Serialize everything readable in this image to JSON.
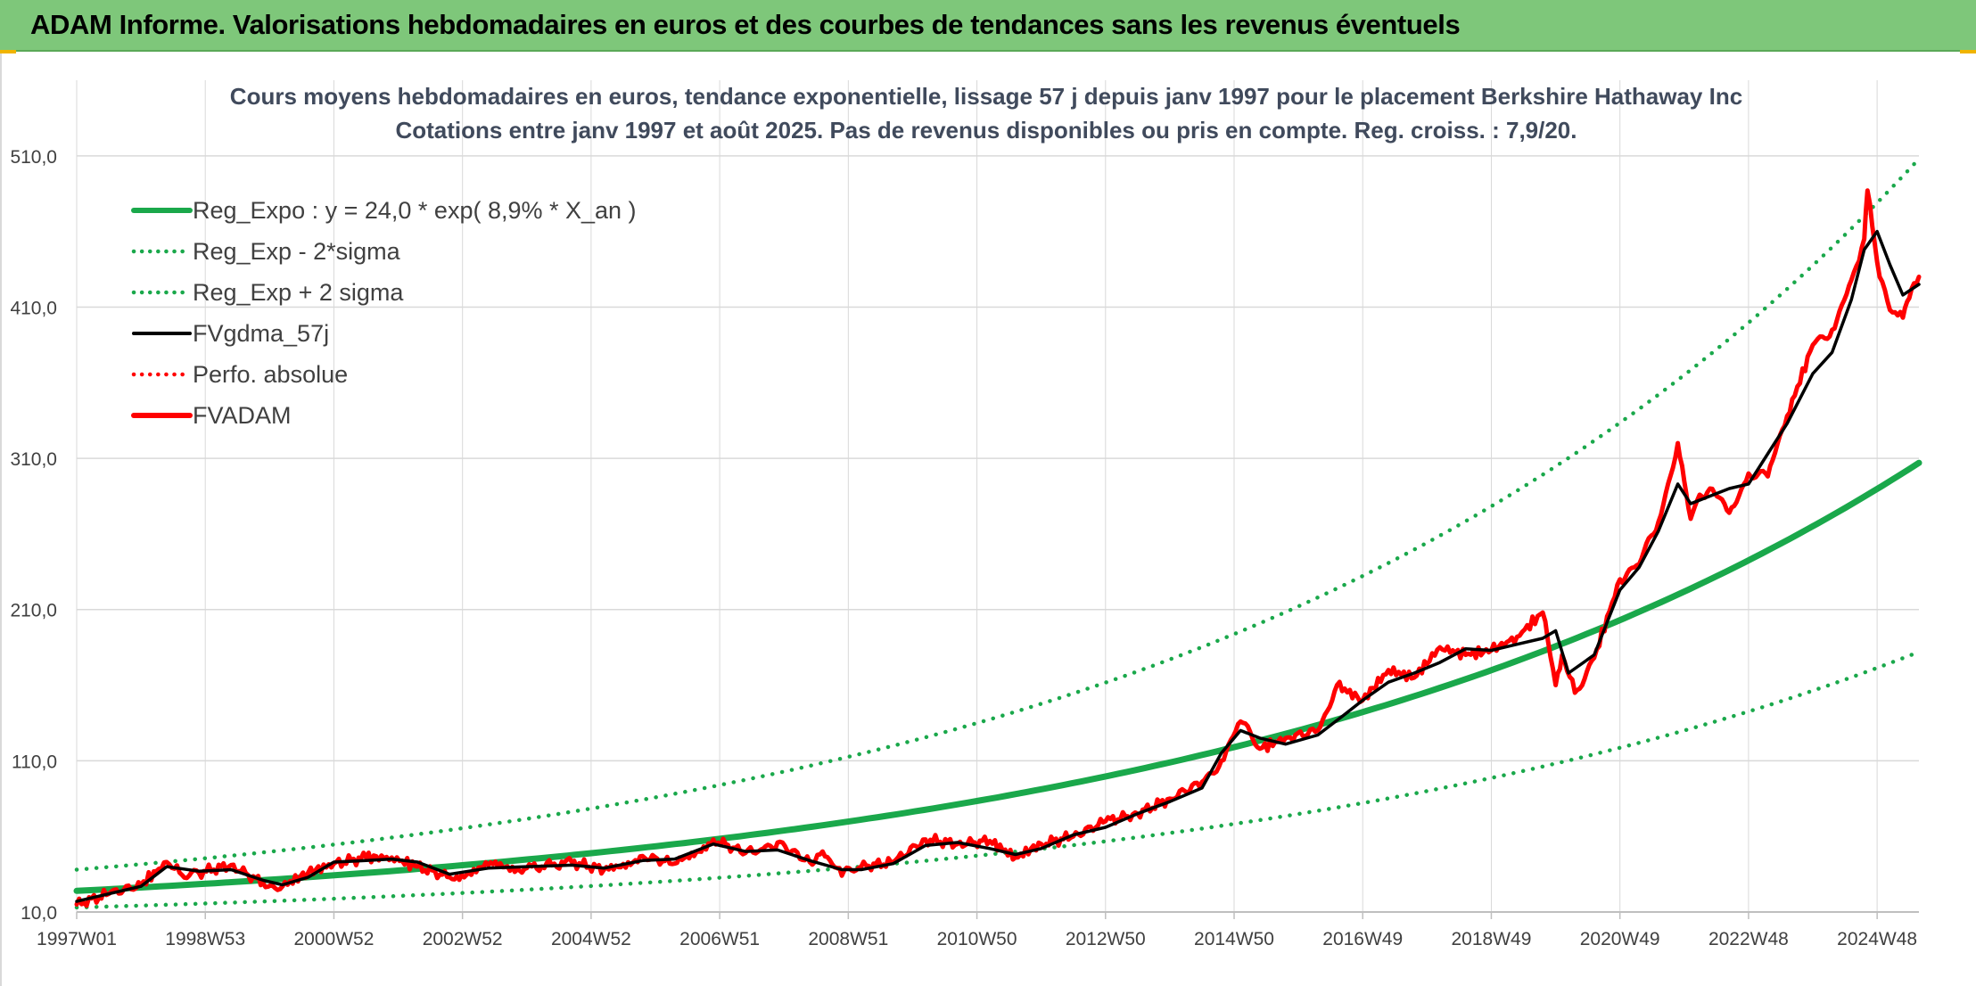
{
  "header": {
    "title": "ADAM Informe. Valorisations hebdomadaires en euros et des courbes de tendances sans les revenus éventuels"
  },
  "colors": {
    "banner": "#7ec77a",
    "trend": "#1aa84b",
    "price": "#ff0000",
    "smooth": "#000000",
    "grid": "#d9d9d9"
  },
  "chart_data": {
    "type": "line",
    "title": "Cours moyens hebdomadaires en euros, tendance exponentielle, lissage 57 j depuis janv 1997 pour le placement Berkshire Hathaway Inc",
    "subtitle": "Cotations entre janv 1997 et août 2025. Pas de revenus disponibles ou pris en compte. Reg. croiss. : 7,9/20.",
    "xlabel": "",
    "ylabel": "",
    "ylim": [
      10,
      560
    ],
    "xlim": [
      1997.0,
      2025.65
    ],
    "grid": true,
    "legend_position": "top-left",
    "y_ticks": [
      "10,0",
      "110,0",
      "210,0",
      "310,0",
      "410,0",
      "510,0"
    ],
    "y_tick_values": [
      10,
      110,
      210,
      310,
      410,
      510
    ],
    "x_ticks": [
      "1997W01",
      "1998W53",
      "2000W52",
      "2002W52",
      "2004W52",
      "2006W51",
      "2008W51",
      "2010W50",
      "2012W50",
      "2014W50",
      "2016W49",
      "2018W49",
      "2020W49",
      "2022W48",
      "2024W48"
    ],
    "x_tick_values": [
      1997.0,
      1999.0,
      2001.0,
      2003.0,
      2005.0,
      2007.0,
      2009.0,
      2011.0,
      2013.0,
      2015.0,
      2017.0,
      2019.0,
      2021.0,
      2023.0,
      2025.0
    ],
    "series": [
      {
        "name": "Reg_Expo : y = 24,0 * exp( 8,9% *  X_an )",
        "style": "solid-thick",
        "color": "#1aa84b",
        "formula": "trend",
        "x": [
          1997.0,
          2025.65
        ],
        "values": [
          24.0,
          307.0
        ]
      },
      {
        "name": "Reg_Exp - 2*sigma",
        "style": "dotted",
        "color": "#1aa84b",
        "formula": "lower",
        "x": [
          1997.0,
          2025.65
        ],
        "values": [
          13.0,
          182.0
        ]
      },
      {
        "name": "Reg_Exp + 2 sigma",
        "style": "dotted",
        "color": "#1aa84b",
        "formula": "upper",
        "x": [
          1997.0,
          2025.65
        ],
        "values": [
          38.0,
          508.0
        ]
      },
      {
        "name": "FVgdma_57j",
        "style": "solid",
        "color": "#000000",
        "formula": "smooth",
        "x": [
          1997.0,
          1997.5,
          1998.0,
          1998.4,
          1998.9,
          1999.4,
          1999.9,
          2000.2,
          2000.6,
          2001.0,
          2001.5,
          2001.9,
          2002.3,
          2002.8,
          2003.4,
          2004.0,
          2004.7,
          2005.2,
          2005.8,
          2006.3,
          2006.9,
          2007.4,
          2007.9,
          2008.4,
          2008.9,
          2009.2,
          2009.7,
          2010.2,
          2010.7,
          2011.2,
          2011.6,
          2012.0,
          2012.5,
          2013.0,
          2013.5,
          2014.0,
          2014.5,
          2014.8,
          2015.1,
          2015.4,
          2015.8,
          2016.3,
          2016.7,
          2017.0,
          2017.4,
          2017.8,
          2018.2,
          2018.6,
          2019.0,
          2019.4,
          2019.8,
          2020.0,
          2020.2,
          2020.6,
          2021.0,
          2021.3,
          2021.6,
          2021.9,
          2022.1,
          2022.4,
          2022.7,
          2023.0,
          2023.3,
          2023.6,
          2024.0,
          2024.3,
          2024.6,
          2024.8,
          2025.0,
          2025.2,
          2025.4,
          2025.65
        ],
        "values": [
          17,
          22,
          27,
          40,
          37,
          38,
          31,
          28,
          33,
          43,
          44,
          45,
          43,
          35,
          39,
          40,
          41,
          39,
          44,
          45,
          55,
          50,
          51,
          44,
          38,
          38,
          42,
          54,
          56,
          52,
          48,
          52,
          61,
          66,
          75,
          83,
          92,
          115,
          130,
          125,
          121,
          127,
          140,
          150,
          162,
          168,
          175,
          184,
          183,
          187,
          191,
          196,
          168,
          180,
          223,
          238,
          262,
          293,
          280,
          285,
          290,
          293,
          313,
          333,
          366,
          380,
          415,
          448,
          460,
          438,
          418,
          425
        ]
      },
      {
        "name": "Perfo. absolue",
        "style": "dotted",
        "color": "#ff0000",
        "formula": "price",
        "x": [],
        "values": []
      },
      {
        "name": "FVADAM",
        "style": "solid-thick",
        "color": "#ff0000",
        "formula": "price",
        "x": [
          1997.0,
          1997.5,
          1998.0,
          1998.4,
          1998.6,
          1998.9,
          1999.4,
          1999.9,
          2000.2,
          2000.6,
          2001.0,
          2001.5,
          2001.9,
          2002.3,
          2002.8,
          2003.4,
          2004.0,
          2004.7,
          2005.2,
          2005.8,
          2006.3,
          2006.9,
          2007.4,
          2007.6,
          2007.9,
          2008.4,
          2008.6,
          2008.9,
          2009.2,
          2009.7,
          2010.2,
          2010.7,
          2011.2,
          2011.6,
          2012.0,
          2012.5,
          2013.0,
          2013.5,
          2014.0,
          2014.5,
          2014.8,
          2015.1,
          2015.4,
          2015.8,
          2016.3,
          2016.6,
          2017.0,
          2017.4,
          2017.8,
          2018.2,
          2018.6,
          2019.0,
          2019.4,
          2019.8,
          2020.0,
          2020.1,
          2020.3,
          2020.6,
          2021.0,
          2021.3,
          2021.6,
          2021.9,
          2022.0,
          2022.1,
          2022.2,
          2022.4,
          2022.7,
          2023.0,
          2023.3,
          2023.6,
          2024.0,
          2024.3,
          2024.6,
          2024.8,
          2024.85,
          2025.0,
          2025.2,
          2025.4,
          2025.5,
          2025.65
        ],
        "values": [
          15,
          22,
          28,
          43,
          36,
          36,
          41,
          29,
          27,
          36,
          42,
          46,
          46,
          40,
          33,
          41,
          39,
          43,
          38,
          47,
          42,
          58,
          49,
          50,
          56,
          43,
          50,
          34,
          40,
          43,
          58,
          55,
          57,
          46,
          55,
          60,
          70,
          75,
          85,
          96,
          110,
          136,
          118,
          125,
          130,
          160,
          150,
          170,
          165,
          185,
          180,
          183,
          192,
          208,
          160,
          180,
          155,
          178,
          230,
          240,
          268,
          320,
          295,
          270,
          282,
          290,
          274,
          300,
          298,
          338,
          385,
          395,
          428,
          455,
          487,
          440,
          408,
          403,
          416,
          430
        ]
      }
    ]
  }
}
